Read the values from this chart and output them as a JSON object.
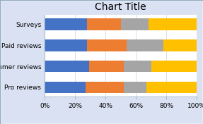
{
  "title": "Chart Title",
  "categories": [
    "Surveys",
    "Paid reviews",
    "Consumer reviews",
    "Pro reviews"
  ],
  "series": {
    "iOS": [
      28,
      28,
      29,
      27
    ],
    "Android": [
      22,
      26,
      23,
      25
    ],
    "Mac": [
      18,
      24,
      18,
      15
    ],
    "Windows": [
      32,
      22,
      30,
      33
    ]
  },
  "colors": {
    "iOS": "#4472C4",
    "Android": "#ED7D31",
    "Mac": "#A5A5A5",
    "Windows": "#FFC000"
  },
  "xlim": [
    0,
    100
  ],
  "xtick_labels": [
    "0%",
    "20%",
    "40%",
    "60%",
    "80%",
    "100%"
  ],
  "xtick_values": [
    0,
    20,
    40,
    60,
    80,
    100
  ],
  "fig_background": "#D9E1F2",
  "plot_background": "#FFFFFF",
  "title_fontsize": 10,
  "label_fontsize": 6.5,
  "legend_fontsize": 6,
  "bar_height": 0.55,
  "grid_color": "#D9D9D9",
  "border_color": "#8EA9C1"
}
